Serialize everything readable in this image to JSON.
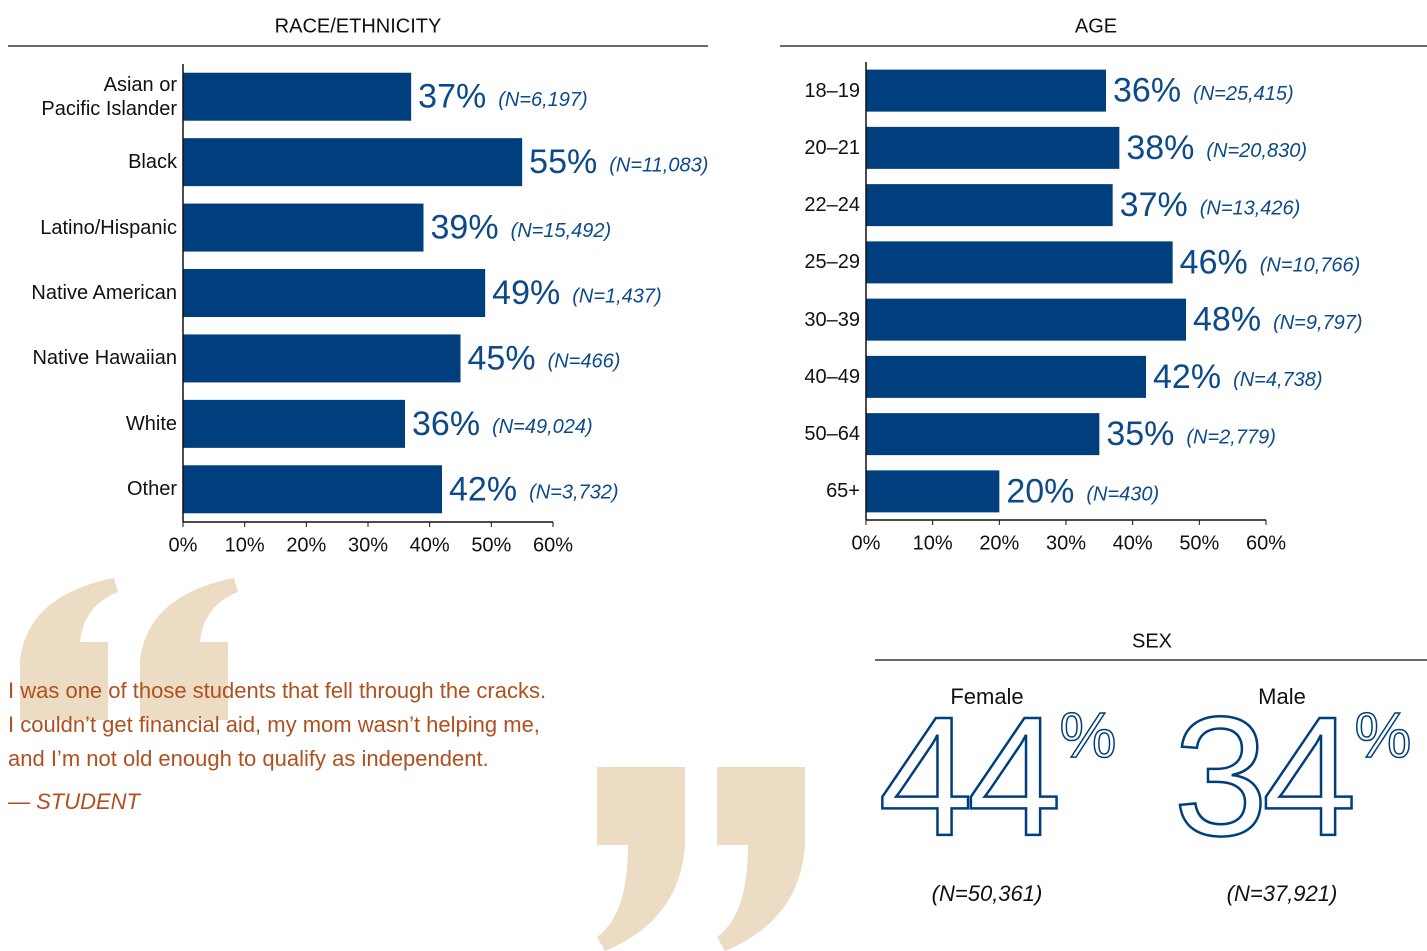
{
  "chart_data": [
    {
      "type": "hbar",
      "title": "RACE/ETHNICITY",
      "categories": [
        "Asian or Pacific Islander",
        "Black",
        "Latino/Hispanic",
        "Native American",
        "Native Hawaiian",
        "White",
        "Other"
      ],
      "values": [
        37,
        55,
        39,
        49,
        45,
        36,
        42
      ],
      "value_labels": [
        "37%",
        "55%",
        "39%",
        "49%",
        "45%",
        "36%",
        "42%"
      ],
      "n_labels": [
        "(N=6,197)",
        "(N=11,083)",
        "(N=15,492)",
        "(N=1,437)",
        "(N=466)",
        "(N=49,024)",
        "(N=3,732)"
      ],
      "color": "#003f7d",
      "xlim": [
        0,
        60
      ],
      "xticks": [
        {
          "value": 0,
          "label": "0%"
        },
        {
          "value": 10,
          "label": "10%"
        },
        {
          "value": 20,
          "label": "20%"
        },
        {
          "value": 30,
          "label": "30%"
        },
        {
          "value": 40,
          "label": "40%"
        },
        {
          "value": 50,
          "label": "50%"
        },
        {
          "value": 60,
          "label": "60%"
        }
      ]
    },
    {
      "type": "hbar",
      "title": "AGE",
      "categories": [
        "18–19",
        "20–21",
        "22–24",
        "25–29",
        "30–39",
        "40–49",
        "50–64",
        "65+"
      ],
      "values": [
        36,
        38,
        37,
        46,
        48,
        42,
        35,
        20
      ],
      "value_labels": [
        "36%",
        "38%",
        "37%",
        "46%",
        "48%",
        "42%",
        "35%",
        "20%"
      ],
      "n_labels": [
        "(N=25,415)",
        "(N=20,830)",
        "(N=13,426)",
        "(N=10,766)",
        "(N=9,797)",
        "(N=4,738)",
        "(N=2,779)",
        "(N=430)"
      ],
      "color": "#003f7d",
      "xlim": [
        0,
        60
      ],
      "xticks": [
        {
          "value": 0,
          "label": "0%"
        },
        {
          "value": 10,
          "label": "10%"
        },
        {
          "value": 20,
          "label": "20%"
        },
        {
          "value": 30,
          "label": "30%"
        },
        {
          "value": 40,
          "label": "40%"
        },
        {
          "value": 50,
          "label": "50%"
        },
        {
          "value": 60,
          "label": "60%"
        }
      ]
    },
    {
      "type": "stat",
      "title": "SEX",
      "categories": [
        "Female",
        "Male"
      ],
      "values": [
        44,
        34
      ],
      "unit": "%",
      "n_labels": [
        "(N=50,361)",
        "(N=37,921)"
      ],
      "color": "#003f7d"
    }
  ],
  "quote": {
    "lines": [
      "I was one of those students that fell through the cracks.",
      "I couldn’t get financial aid, my mom wasn’t helping me,",
      "and I’m not old enough to qualify as independent."
    ],
    "attribution": "— STUDENT"
  }
}
